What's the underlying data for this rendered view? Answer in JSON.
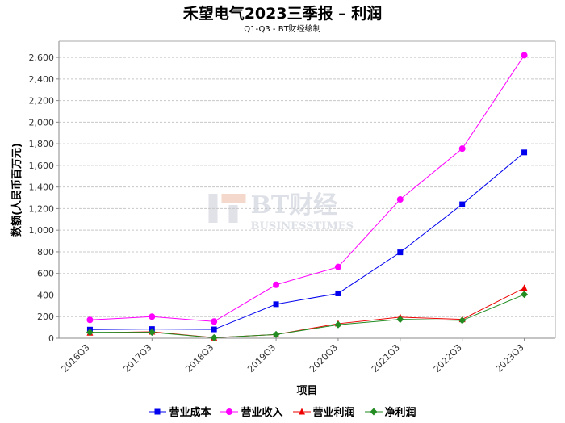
{
  "chart_data": {
    "type": "line",
    "title": "禾望电气2023三季报 – 利润",
    "subtitle": "Q1-Q3 - BT财经绘制",
    "xlabel": "项目",
    "ylabel": "数额(人民币百万元)",
    "categories": [
      "2016Q3",
      "2017Q3",
      "2018Q3",
      "2019Q3",
      "2020Q3",
      "2021Q3",
      "2022Q3",
      "2023Q3"
    ],
    "ylim": [
      0,
      2750
    ],
    "yticks": [
      0,
      200,
      400,
      600,
      800,
      1000,
      1200,
      1400,
      1600,
      1800,
      2000,
      2200,
      2400,
      2600
    ],
    "ytick_labels": [
      "0",
      "200",
      "400",
      "600",
      "800",
      "1,000",
      "1,200",
      "1,400",
      "1,600",
      "1,800",
      "2,000",
      "2,200",
      "2,400",
      "2,600"
    ],
    "grid": true,
    "legend_position": "bottom",
    "watermark": "BT财经 BUSINESSTIMES",
    "series": [
      {
        "name": "营业成本",
        "color": "#0000ee",
        "marker": "square",
        "values": [
          80,
          85,
          82,
          315,
          415,
          795,
          1240,
          1720
        ]
      },
      {
        "name": "营业收入",
        "color": "#ff00ff",
        "marker": "circle",
        "values": [
          170,
          200,
          155,
          495,
          660,
          1285,
          1755,
          2620
        ]
      },
      {
        "name": "营业利润",
        "color": "#ee0000",
        "marker": "triangle",
        "values": [
          50,
          60,
          5,
          35,
          135,
          195,
          175,
          465
        ]
      },
      {
        "name": "净利润",
        "color": "#228b22",
        "marker": "diamond",
        "values": [
          55,
          55,
          5,
          35,
          125,
          175,
          165,
          405
        ]
      }
    ]
  }
}
